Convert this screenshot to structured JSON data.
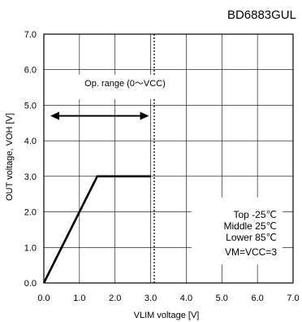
{
  "chart_data": {
    "type": "line",
    "title": "BD6883GUL",
    "xlabel": "VLIM voltage [V]",
    "ylabel": "OUT voltage, VOH [V]",
    "xlim": [
      0,
      7
    ],
    "ylim": [
      0,
      7
    ],
    "xticks": [
      "0.0",
      "1.0",
      "2.0",
      "3.0",
      "4.0",
      "5.0",
      "6.0",
      "7.0"
    ],
    "yticks": [
      "0.0",
      "1.0",
      "2.0",
      "3.0",
      "4.0",
      "5.0",
      "6.0",
      "7.0"
    ],
    "grid": true,
    "series": [
      {
        "x": [
          0,
          1.5,
          3.0
        ],
        "y": [
          0,
          3.0,
          3.0
        ]
      }
    ],
    "annotations": {
      "op_range_label": "Op. range (0〜VCC)",
      "op_range_arrow": {
        "from": 0.0,
        "to": 3.0,
        "y": 4.7
      },
      "vcc_line_x": 3.1,
      "legend_lines": [
        "Top -25℃",
        "Middle 25℃",
        "Lower 85℃",
        "VM=VCC=3"
      ],
      "legend_position": "bottom-right"
    }
  }
}
